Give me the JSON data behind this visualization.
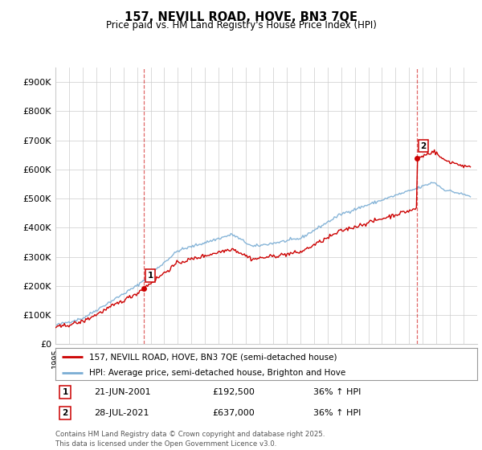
{
  "title": "157, NEVILL ROAD, HOVE, BN3 7QE",
  "subtitle": "Price paid vs. HM Land Registry's House Price Index (HPI)",
  "ylim": [
    0,
    950000
  ],
  "yticks": [
    0,
    100000,
    200000,
    300000,
    400000,
    500000,
    600000,
    700000,
    800000,
    900000
  ],
  "ytick_labels": [
    "£0",
    "£100K",
    "£200K",
    "£300K",
    "£400K",
    "£500K",
    "£600K",
    "£700K",
    "£800K",
    "£900K"
  ],
  "sale1_date": "21-JUN-2001",
  "sale1_price": 192500,
  "sale1_hpi": "36% ↑ HPI",
  "sale2_date": "28-JUL-2021",
  "sale2_price": 637000,
  "sale2_hpi": "36% ↑ HPI",
  "legend_line1": "157, NEVILL ROAD, HOVE, BN3 7QE (semi-detached house)",
  "legend_line2": "HPI: Average price, semi-detached house, Brighton and Hove",
  "footer": "Contains HM Land Registry data © Crown copyright and database right 2025.\nThis data is licensed under the Open Government Licence v3.0.",
  "line_color_red": "#cc0000",
  "line_color_blue": "#7aadd4",
  "vline_color": "#cc0000",
  "background_color": "#ffffff",
  "grid_color": "#cccccc",
  "xlim_start": 1995,
  "xlim_end": 2026
}
